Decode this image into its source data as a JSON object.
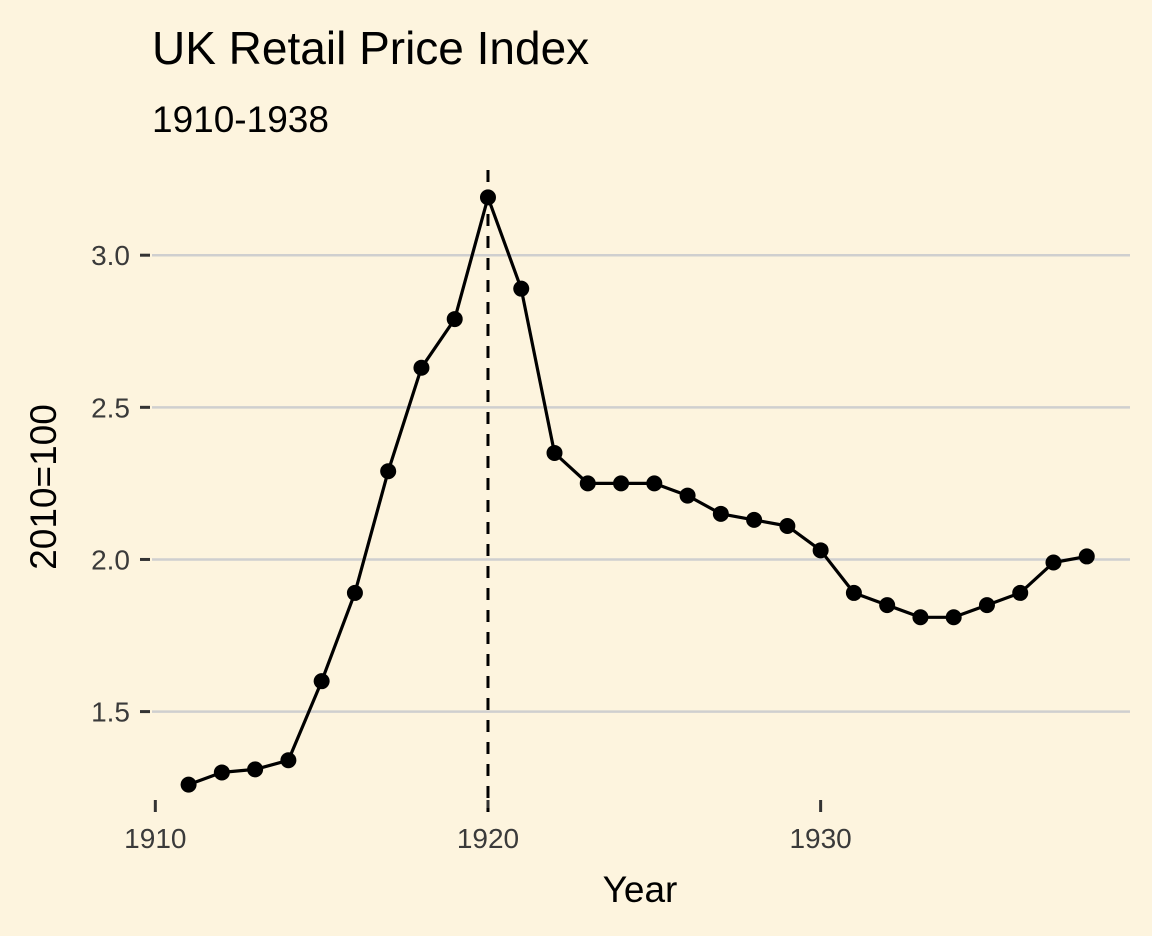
{
  "chart_data": {
    "type": "line",
    "title": "UK Retail Price Index",
    "subtitle": "1910-1938",
    "xlabel": "Year",
    "ylabel": "2010=100",
    "xlim": [
      1909.9,
      1939.3
    ],
    "ylim": [
      1.17,
      3.28
    ],
    "x_ticks": [
      1910,
      1920,
      1930
    ],
    "y_ticks": [
      1.5,
      2.0,
      2.5,
      3.0
    ],
    "y_tick_labels": [
      "1.5",
      "2.0",
      "2.5",
      "3.0"
    ],
    "grid": "horizontal major gridlines",
    "reference_line": {
      "orientation": "vertical",
      "x": 1920,
      "style": "dashed"
    },
    "series": [
      {
        "x": [
          1911,
          1912,
          1913,
          1914,
          1915,
          1916,
          1917,
          1918,
          1919,
          1920,
          1921,
          1922,
          1923,
          1924,
          1925,
          1926,
          1927,
          1928,
          1929,
          1930,
          1931,
          1932,
          1933,
          1934,
          1935,
          1936,
          1937,
          1938
        ],
        "y": [
          1.26,
          1.3,
          1.31,
          1.34,
          1.6,
          1.89,
          2.29,
          2.63,
          2.79,
          3.19,
          2.89,
          2.35,
          2.25,
          2.25,
          2.25,
          2.21,
          2.15,
          2.13,
          2.11,
          2.03,
          1.89,
          1.85,
          1.81,
          1.81,
          1.85,
          1.89,
          1.99,
          2.01
        ]
      }
    ]
  }
}
